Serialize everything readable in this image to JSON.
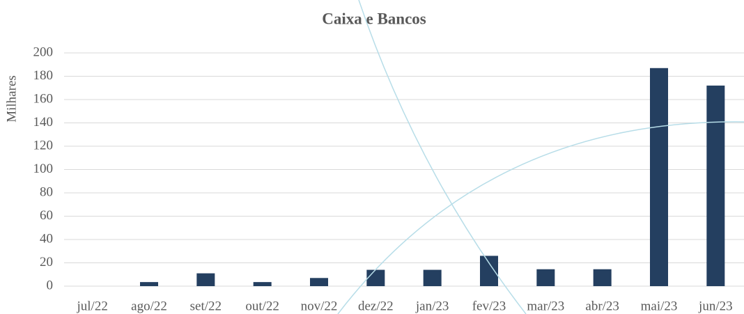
{
  "chart_data": {
    "type": "bar",
    "title": "Caixa e Bancos",
    "y_label": "Milhares",
    "categories": [
      "jul/22",
      "ago/22",
      "set/22",
      "out/22",
      "nov/22",
      "dez/22",
      "jan/23",
      "fev/23",
      "mar/23",
      "abr/23",
      "mai/23",
      "jun/23"
    ],
    "values": [
      0,
      3.5,
      11,
      3.5,
      7,
      14,
      14,
      26,
      14.5,
      14.5,
      187,
      172
    ],
    "color": "#243f60",
    "ylim": [
      0,
      200
    ],
    "yticks": [
      0,
      20,
      40,
      60,
      80,
      100,
      120,
      140,
      160,
      180,
      200
    ],
    "grid": true
  }
}
